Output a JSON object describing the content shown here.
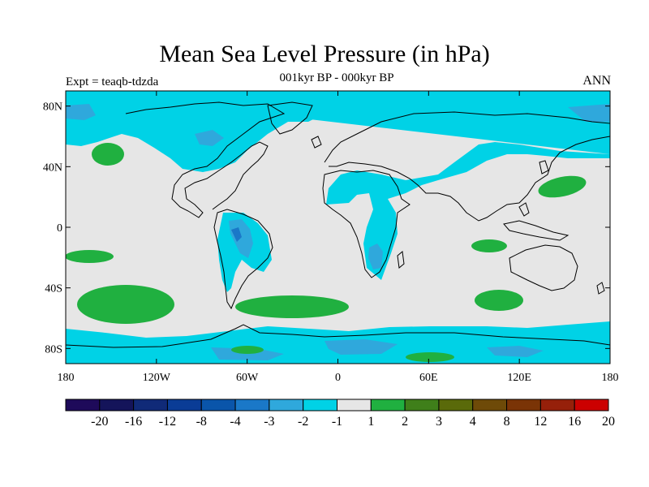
{
  "figure": {
    "title": "Mean Sea Level Pressure (in hPa)",
    "subtitle": "001kyr BP - 000kyr BP",
    "experiment": "Expt = teaqb-tdzda",
    "season": "ANN"
  },
  "axes": {
    "lat_ticks": [
      "80N",
      "40N",
      "0",
      "40S",
      "80S"
    ],
    "lat_values": [
      80,
      40,
      0,
      -40,
      -80
    ],
    "lon_ticks": [
      "180",
      "120W",
      "60W",
      "0",
      "60E",
      "120E",
      "180"
    ],
    "lon_values": [
      -180,
      -120,
      -60,
      0,
      60,
      120,
      180
    ]
  },
  "colorbar": {
    "labels": [
      "-20",
      "-16",
      "-12",
      "-8",
      "-4",
      "-3",
      "-2",
      "-1",
      "1",
      "2",
      "3",
      "4",
      "8",
      "12",
      "16",
      "20"
    ],
    "colors": [
      "#1e0a5a",
      "#14145a",
      "#102a78",
      "#0a3c96",
      "#0a55aa",
      "#1a78c8",
      "#2fa8dc",
      "#00d2e6",
      "#e6e6e6",
      "#20b040",
      "#3f7f1a",
      "#5a6a0a",
      "#6e4a08",
      "#7a3406",
      "#96200a",
      "#cc0000"
    ]
  },
  "map_layers": {
    "background_color": "#e6e6e6",
    "land_outline_color": "#000000",
    "regions": [
      {
        "level": "-2",
        "color": "#00d2e6"
      },
      {
        "level": "-3",
        "color": "#2fa8dc"
      },
      {
        "level": "-4",
        "color": "#1a78c8"
      },
      {
        "level": "2",
        "color": "#20b040"
      }
    ]
  }
}
